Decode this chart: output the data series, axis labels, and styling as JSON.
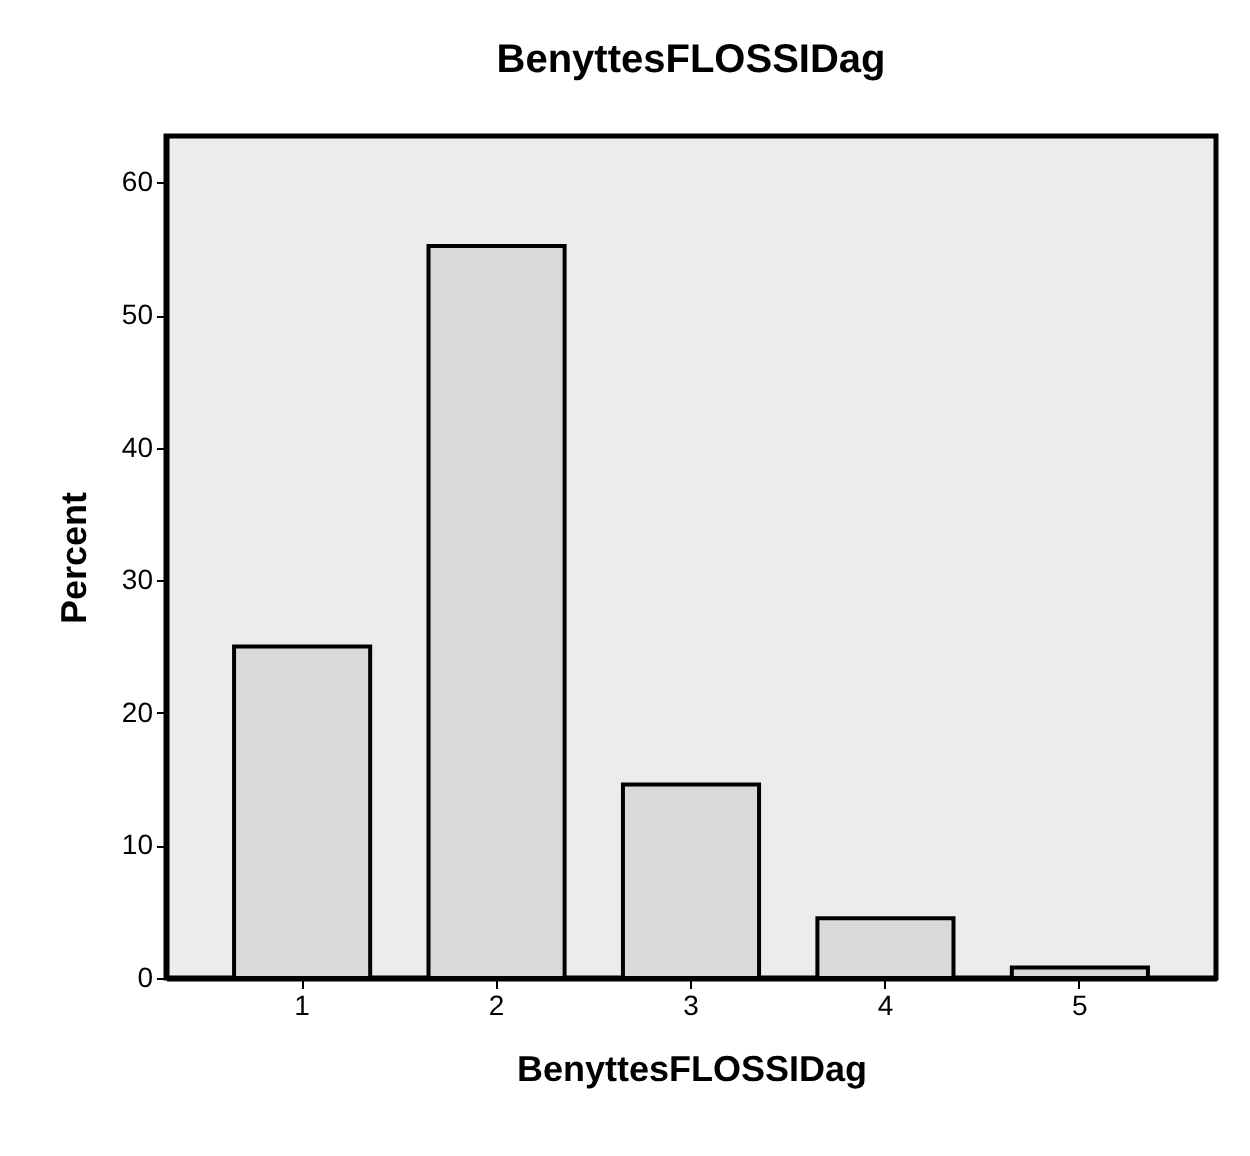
{
  "chart_data": {
    "type": "bar",
    "title": "BenyttesFLOSSIDag",
    "xlabel": "BenyttesFLOSSIDag",
    "ylabel": "Percent",
    "categories": [
      "1",
      "2",
      "3",
      "4",
      "5"
    ],
    "values": [
      25.0,
      55.2,
      14.6,
      4.5,
      0.8
    ],
    "color": "#d9d9d9",
    "ylim": [
      0,
      63.5
    ],
    "yticks": [
      0,
      10,
      20,
      30,
      40,
      50,
      60
    ],
    "grid": false
  }
}
